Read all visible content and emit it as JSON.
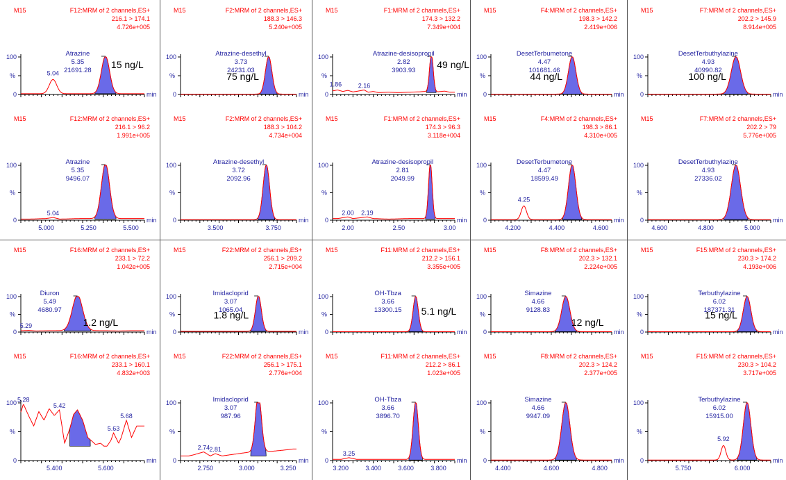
{
  "chart_data": [
    {
      "type": "chromatogram",
      "label": "M15",
      "function": "F12:MRM of 2 channels,ES+",
      "transition": "216.1 > 174.1",
      "intensity": "4.726e+005",
      "compound": "Atrazine",
      "rt": "5.35",
      "area": "21691.28",
      "concentration": "15 ng/L",
      "xmin": 4.85,
      "xmax": 5.58,
      "y_ticks": [
        "100",
        "%",
        "0"
      ],
      "x_unit": "min",
      "x_ticks": [],
      "peaks": [
        {
          "x": 5.35,
          "y": 100,
          "w": 0.024,
          "filled": true
        },
        {
          "x": 5.04,
          "y": 38,
          "w": 0.022,
          "filled": false
        }
      ],
      "peak_labels": [
        {
          "text": "5.04",
          "x": 5.04,
          "y": 45
        }
      ],
      "noise": [],
      "baseline": 2
    },
    {
      "type": "chromatogram",
      "label": "M15",
      "function": "F2:MRM of 2 channels,ES+",
      "transition": "188.3 > 146.3",
      "intensity": "5.240e+005",
      "compound": "Atrazine-desethyl",
      "rt": "3.73",
      "area": "24231.03",
      "concentration": "75 ng/L",
      "xmin": 3.35,
      "xmax": 3.85,
      "y_ticks": [
        "100",
        "%",
        "0"
      ],
      "x_unit": "min",
      "x_ticks": [],
      "peaks": [
        {
          "x": 3.73,
          "y": 100,
          "w": 0.014,
          "filled": true
        }
      ],
      "peak_labels": [],
      "noise": [],
      "baseline": 1
    },
    {
      "type": "chromatogram",
      "label": "M15",
      "function": "F1:MRM of 2 channels,ES+",
      "transition": "174.3 > 132.2",
      "intensity": "7.349e+004",
      "compound": "Atrazine-desisopropil",
      "rt": "2.82",
      "area": "3903.93",
      "concentration": "49 ng/L",
      "xmin": 1.85,
      "xmax": 3.05,
      "y_ticks": [
        "100",
        "%",
        "0"
      ],
      "x_unit": "min",
      "x_ticks": [],
      "peaks": [
        {
          "x": 2.82,
          "y": 100,
          "w": 0.018,
          "filled": true
        }
      ],
      "peak_labels": [
        {
          "text": "1.86",
          "x": 1.88,
          "y": 16
        },
        {
          "text": "2.16",
          "x": 2.16,
          "y": 12
        }
      ],
      "noise": [
        [
          1.86,
          10
        ],
        [
          1.9,
          12
        ],
        [
          1.95,
          8
        ],
        [
          2.0,
          11
        ],
        [
          2.05,
          7
        ],
        [
          2.1,
          9
        ],
        [
          2.16,
          12
        ],
        [
          2.2,
          6
        ],
        [
          2.25,
          8
        ],
        [
          2.3,
          5
        ],
        [
          2.4,
          6
        ],
        [
          2.5,
          5
        ],
        [
          2.6,
          6
        ],
        [
          2.7,
          7
        ],
        [
          2.75,
          8
        ],
        [
          2.88,
          7
        ],
        [
          2.95,
          9
        ],
        [
          3.0,
          6
        ]
      ],
      "baseline": 5
    },
    {
      "type": "chromatogram",
      "label": "M15",
      "function": "F4:MRM of 2 channels,ES+",
      "transition": "198.3 > 142.2",
      "intensity": "2.419e+006",
      "compound": "DesetTerbumetone",
      "rt": "4.47",
      "area": "101681.46",
      "concentration": "44 ng/L",
      "xmin": 4.1,
      "xmax": 4.65,
      "y_ticks": [
        "100",
        "%",
        "0"
      ],
      "x_unit": "min",
      "x_ticks": [],
      "peaks": [
        {
          "x": 4.47,
          "y": 100,
          "w": 0.017,
          "filled": true
        }
      ],
      "peak_labels": [],
      "noise": [],
      "baseline": 1
    },
    {
      "type": "chromatogram",
      "label": "M15",
      "function": "F7:MRM of 2 channels,ES+",
      "transition": "202.2 > 145.9",
      "intensity": "8.914e+005",
      "compound": "DesetTerbuthylazine",
      "rt": "4.93",
      "area": "40990.82",
      "concentration": "100 ng/L",
      "xmin": 4.55,
      "xmax": 5.08,
      "y_ticks": [
        "100",
        "%",
        "0"
      ],
      "x_unit": "min",
      "x_ticks": [],
      "peaks": [
        {
          "x": 4.93,
          "y": 100,
          "w": 0.02,
          "filled": true
        }
      ],
      "peak_labels": [],
      "noise": [],
      "baseline": 1
    },
    {
      "type": "chromatogram",
      "label": "M15",
      "function": "F12:MRM of 2 channels,ES+",
      "transition": "216.1 > 96.2",
      "intensity": "1.991e+005",
      "compound": "Atrazine",
      "rt": "5.35",
      "area": "9496.07",
      "concentration": "",
      "xmin": 4.85,
      "xmax": 5.58,
      "y_ticks": [
        "100",
        "%",
        "0"
      ],
      "x_unit": "min",
      "x_ticks": [
        "5.000",
        "5.250",
        "5.500"
      ],
      "peaks": [
        {
          "x": 5.35,
          "y": 100,
          "w": 0.024,
          "filled": true
        }
      ],
      "peak_labels": [
        {
          "text": "5.04",
          "x": 5.04,
          "y": 5
        }
      ],
      "noise": [
        [
          4.9,
          2
        ],
        [
          5.0,
          3
        ],
        [
          5.04,
          5
        ],
        [
          5.08,
          2
        ],
        [
          5.2,
          3
        ]
      ],
      "baseline": 2
    },
    {
      "type": "chromatogram",
      "label": "M15",
      "function": "F2:MRM of 2 channels,ES+",
      "transition": "188.3 > 104.2",
      "intensity": "4.734e+004",
      "compound": "Atrazine-desethyl",
      "rt": "3.72",
      "area": "2092.96",
      "concentration": "",
      "xmin": 3.35,
      "xmax": 3.85,
      "y_ticks": [
        "100",
        "%",
        "0"
      ],
      "x_unit": "min",
      "x_ticks": [
        "3.500",
        "3.750"
      ],
      "peaks": [
        {
          "x": 3.72,
          "y": 100,
          "w": 0.014,
          "filled": true
        }
      ],
      "peak_labels": [],
      "noise": [],
      "baseline": 1
    },
    {
      "type": "chromatogram",
      "label": "M15",
      "function": "F1:MRM of 2 channels,ES+",
      "transition": "174.3 > 96.3",
      "intensity": "3.118e+004",
      "compound": "Atrazine-desisopropil",
      "rt": "2.81",
      "area": "2049.99",
      "concentration": "",
      "xmin": 1.85,
      "xmax": 3.05,
      "y_ticks": [
        "100",
        "%",
        "0"
      ],
      "x_unit": "min",
      "x_ticks": [
        "2.00",
        "2.50",
        "3.00"
      ],
      "peaks": [
        {
          "x": 2.81,
          "y": 100,
          "w": 0.018,
          "filled": true
        }
      ],
      "peak_labels": [
        {
          "text": "2.00",
          "x": 2.0,
          "y": 6
        },
        {
          "text": "2.19",
          "x": 2.19,
          "y": 6
        }
      ],
      "noise": [
        [
          1.9,
          3
        ],
        [
          2.0,
          6
        ],
        [
          2.05,
          3
        ],
        [
          2.1,
          4
        ],
        [
          2.19,
          6
        ],
        [
          2.25,
          3
        ],
        [
          2.4,
          2
        ],
        [
          2.6,
          3
        ]
      ],
      "baseline": 2
    },
    {
      "type": "chromatogram",
      "label": "M15",
      "function": "F4:MRM of 2 channels,ES+",
      "transition": "198.3 > 86.1",
      "intensity": "4.310e+005",
      "compound": "DesetTerbumetone",
      "rt": "4.47",
      "area": "18599.49",
      "concentration": "",
      "xmin": 4.1,
      "xmax": 4.65,
      "y_ticks": [
        "100",
        "%",
        "0"
      ],
      "x_unit": "min",
      "x_ticks": [
        "4.200",
        "4.400",
        "4.600"
      ],
      "peaks": [
        {
          "x": 4.47,
          "y": 100,
          "w": 0.017,
          "filled": true
        },
        {
          "x": 4.25,
          "y": 25,
          "w": 0.012,
          "filled": false
        }
      ],
      "peak_labels": [
        {
          "text": "4.25",
          "x": 4.25,
          "y": 30
        }
      ],
      "noise": [],
      "baseline": 1
    },
    {
      "type": "chromatogram",
      "label": "M15",
      "function": "F7:MRM of 2 channels,ES+",
      "transition": "202.2 > 79",
      "intensity": "5.776e+005",
      "compound": "DesetTerbuthylazine",
      "rt": "4.93",
      "area": "27336.02",
      "concentration": "",
      "xmin": 4.55,
      "xmax": 5.08,
      "y_ticks": [
        "100",
        "%",
        "0"
      ],
      "x_unit": "min",
      "x_ticks": [
        "4.600",
        "4.800",
        "5.000"
      ],
      "peaks": [
        {
          "x": 4.93,
          "y": 100,
          "w": 0.02,
          "filled": true
        }
      ],
      "peak_labels": [],
      "noise": [],
      "baseline": 1
    },
    {
      "type": "chromatogram",
      "label": "M15",
      "function": "F16:MRM of 2 channels,ES+",
      "transition": "233.1 > 72.2",
      "intensity": "1.042e+005",
      "compound": "Diuron",
      "rt": "5.49",
      "area": "4680.97",
      "concentration": "1.2 ng/L",
      "xmin": 5.27,
      "xmax": 5.75,
      "y_ticks": [
        "100",
        "%",
        "0"
      ],
      "x_unit": "min",
      "x_ticks": [],
      "peaks": [
        {
          "x": 5.49,
          "y": 100,
          "w": 0.02,
          "filled": true
        }
      ],
      "peak_labels": [
        {
          "text": "5.29",
          "x": 5.29,
          "y": 6
        }
      ],
      "noise": [
        [
          5.28,
          4
        ],
        [
          5.3,
          5
        ],
        [
          5.33,
          3
        ],
        [
          5.38,
          4
        ],
        [
          5.6,
          4
        ],
        [
          5.65,
          3
        ],
        [
          5.7,
          4
        ]
      ],
      "baseline": 3
    },
    {
      "type": "chromatogram",
      "label": "M15",
      "function": "F22:MRM of 2 channels,ES+",
      "transition": "256.1 > 209.2",
      "intensity": "2.715e+004",
      "compound": "Imidacloprid",
      "rt": "3.07",
      "area": "1065.04",
      "concentration": "1.8 ng/L",
      "xmin": 2.6,
      "xmax": 3.3,
      "y_ticks": [
        "100",
        "%",
        "0"
      ],
      "x_unit": "min",
      "x_ticks": [],
      "peaks": [
        {
          "x": 3.07,
          "y": 100,
          "w": 0.018,
          "filled": true
        }
      ],
      "peak_labels": [],
      "noise": [],
      "baseline": 2
    },
    {
      "type": "chromatogram",
      "label": "M15",
      "function": "F11:MRM of 2 channels,ES+",
      "transition": "212.2 > 156.1",
      "intensity": "3.355e+005",
      "compound": "OH-Tbza",
      "rt": "3.66",
      "area": "13300.15",
      "concentration": "5.1 ng/L",
      "xmin": 3.15,
      "xmax": 3.9,
      "y_ticks": [
        "100",
        "%",
        "0"
      ],
      "x_unit": "min",
      "x_ticks": [],
      "peaks": [
        {
          "x": 3.66,
          "y": 100,
          "w": 0.016,
          "filled": true
        }
      ],
      "peak_labels": [],
      "noise": [],
      "baseline": 1
    },
    {
      "type": "chromatogram",
      "label": "M15",
      "function": "F8:MRM of 2 channels,ES+",
      "transition": "202.3 > 132.1",
      "intensity": "2.224e+005",
      "compound": "Simazine",
      "rt": "4.66",
      "area": "9128.83",
      "concentration": "12 ng/L",
      "xmin": 4.35,
      "xmax": 4.85,
      "y_ticks": [
        "100",
        "%",
        "0"
      ],
      "x_unit": "min",
      "x_ticks": [],
      "peaks": [
        {
          "x": 4.66,
          "y": 100,
          "w": 0.017,
          "filled": true
        }
      ],
      "peak_labels": [],
      "noise": [],
      "baseline": 1
    },
    {
      "type": "chromatogram",
      "label": "M15",
      "function": "F15:MRM of 2 channels,ES+",
      "transition": "230.3 > 174.2",
      "intensity": "4.193e+006",
      "compound": "Terbuthylazine",
      "rt": "6.02",
      "area": "187371.31",
      "concentration": "15 ng/L",
      "xmin": 5.6,
      "xmax": 6.12,
      "y_ticks": [
        "100",
        "%",
        "0"
      ],
      "x_unit": "min",
      "x_ticks": [],
      "peaks": [
        {
          "x": 6.02,
          "y": 100,
          "w": 0.016,
          "filled": true
        }
      ],
      "peak_labels": [],
      "noise": [],
      "baseline": 1
    },
    {
      "type": "chromatogram",
      "label": "M15",
      "function": "F16:MRM of 2 channels,ES+",
      "transition": "233.1 > 160.1",
      "intensity": "4.832e+003",
      "compound": "",
      "rt": "",
      "area": "",
      "concentration": "",
      "xmin": 5.27,
      "xmax": 5.75,
      "y_ticks": [
        "100",
        "%",
        "0"
      ],
      "x_unit": "min",
      "x_ticks": [
        "5.400",
        "5.600"
      ],
      "peaks": [],
      "peak_labels": [
        {
          "text": "5.28",
          "x": 5.28,
          "y": 98
        },
        {
          "text": "5.42",
          "x": 5.42,
          "y": 88
        },
        {
          "text": "5.63",
          "x": 5.63,
          "y": 48
        },
        {
          "text": "5.68",
          "x": 5.68,
          "y": 70
        }
      ],
      "noise": [
        [
          5.26,
          70
        ],
        [
          5.28,
          98
        ],
        [
          5.3,
          78
        ],
        [
          5.32,
          60
        ],
        [
          5.34,
          85
        ],
        [
          5.36,
          70
        ],
        [
          5.38,
          90
        ],
        [
          5.4,
          78
        ],
        [
          5.42,
          88
        ],
        [
          5.44,
          30
        ],
        [
          5.46,
          55
        ],
        [
          5.475,
          80
        ],
        [
          5.49,
          88
        ],
        [
          5.51,
          70
        ],
        [
          5.53,
          40
        ],
        [
          5.56,
          28
        ],
        [
          5.58,
          30
        ],
        [
          5.6,
          22
        ],
        [
          5.62,
          35
        ],
        [
          5.63,
          48
        ],
        [
          5.65,
          30
        ],
        [
          5.66,
          40
        ],
        [
          5.68,
          70
        ],
        [
          5.7,
          40
        ],
        [
          5.72,
          60
        ]
      ],
      "filled_region": [
        5.46,
        5.54
      ],
      "baseline": 25
    },
    {
      "type": "chromatogram",
      "label": "M15",
      "function": "F22:MRM of 2 channels,ES+",
      "transition": "256.1 > 175.1",
      "intensity": "2.776e+004",
      "compound": "Imidacloprid",
      "rt": "3.07",
      "area": "987.96",
      "concentration": "",
      "xmin": 2.6,
      "xmax": 3.3,
      "y_ticks": [
        "100",
        "%",
        "0"
      ],
      "x_unit": "min",
      "x_ticks": [
        "2.750",
        "3.000",
        "3.250"
      ],
      "peaks": [
        {
          "x": 3.07,
          "y": 100,
          "w": 0.018,
          "filled": true
        }
      ],
      "peak_labels": [
        {
          "text": "2.74",
          "x": 2.74,
          "y": 15
        },
        {
          "text": "2.81",
          "x": 2.81,
          "y": 12
        }
      ],
      "noise": [
        [
          2.62,
          6
        ],
        [
          2.68,
          10
        ],
        [
          2.74,
          15
        ],
        [
          2.78,
          8
        ],
        [
          2.81,
          12
        ],
        [
          2.85,
          8
        ],
        [
          2.9,
          10
        ],
        [
          2.95,
          12
        ],
        [
          3.0,
          14
        ],
        [
          3.15,
          16
        ],
        [
          3.22,
          18
        ],
        [
          3.28,
          20
        ]
      ],
      "baseline": 8
    },
    {
      "type": "chromatogram",
      "label": "M15",
      "function": "F11:MRM of 2 channels,ES+",
      "transition": "212.2 > 86.1",
      "intensity": "1.023e+005",
      "compound": "OH-Tbza",
      "rt": "3.66",
      "area": "3896.70",
      "concentration": "",
      "xmin": 3.15,
      "xmax": 3.9,
      "y_ticks": [
        "100",
        "%",
        "0"
      ],
      "x_unit": "min",
      "x_ticks": [
        "3.200",
        "3.400",
        "3.600",
        "3.800"
      ],
      "peaks": [
        {
          "x": 3.66,
          "y": 100,
          "w": 0.016,
          "filled": true
        }
      ],
      "peak_labels": [
        {
          "text": "3.25",
          "x": 3.25,
          "y": 5
        }
      ],
      "noise": [
        [
          3.2,
          2
        ],
        [
          3.25,
          5
        ],
        [
          3.3,
          2
        ]
      ],
      "baseline": 1
    },
    {
      "type": "chromatogram",
      "label": "M15",
      "function": "F8:MRM of 2 channels,ES+",
      "transition": "202.3 > 124.2",
      "intensity": "2.377e+005",
      "compound": "Simazine",
      "rt": "4.66",
      "area": "9947.09",
      "concentration": "",
      "xmin": 4.35,
      "xmax": 4.85,
      "y_ticks": [
        "100",
        "%",
        "0"
      ],
      "x_unit": "min",
      "x_ticks": [
        "4.400",
        "4.600",
        "4.800"
      ],
      "peaks": [
        {
          "x": 4.66,
          "y": 100,
          "w": 0.017,
          "filled": true
        }
      ],
      "peak_labels": [],
      "noise": [],
      "baseline": 1
    },
    {
      "type": "chromatogram",
      "label": "M15",
      "function": "F15:MRM of 2 channels,ES+",
      "transition": "230.3 > 104.2",
      "intensity": "3.717e+005",
      "compound": "Terbuthylazine",
      "rt": "6.02",
      "area": "15915.00",
      "concentration": "",
      "xmin": 5.6,
      "xmax": 6.12,
      "y_ticks": [
        "100",
        "%",
        "0"
      ],
      "x_unit": "min",
      "x_ticks": [
        "5.750",
        "6.000"
      ],
      "peaks": [
        {
          "x": 6.02,
          "y": 100,
          "w": 0.016,
          "filled": true
        },
        {
          "x": 5.92,
          "y": 25,
          "w": 0.01,
          "filled": false
        }
      ],
      "peak_labels": [
        {
          "text": "5.92",
          "x": 5.92,
          "y": 30
        }
      ],
      "noise": [],
      "baseline": 1
    }
  ],
  "colors": {
    "trace": "#ff0000",
    "fill": "#6a6ae8",
    "text_blue": "#1f1f9f",
    "header_red": "#ff0000"
  }
}
